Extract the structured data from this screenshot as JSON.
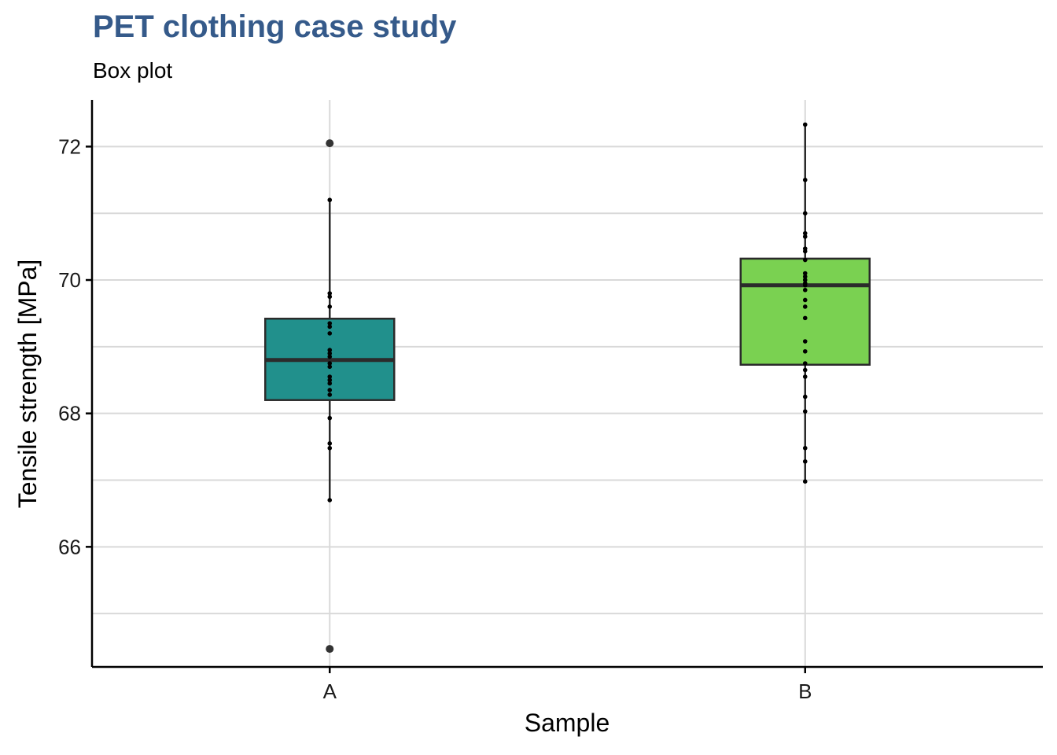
{
  "chart_data": {
    "type": "box",
    "title": "PET clothing case study",
    "subtitle": "Box plot",
    "xlabel": "Sample",
    "ylabel": "Tensile strength [MPa]",
    "categories": [
      "A",
      "B"
    ],
    "ylim": [
      64.2,
      72.7
    ],
    "yticks": [
      66,
      68,
      70,
      72
    ],
    "yminor": [
      65,
      67,
      69,
      71
    ],
    "grid": true,
    "colors": {
      "A": "#21908c",
      "B": "#7ad151",
      "title": "#355a8a",
      "grid": "#d9d9d9",
      "box_line": "#2b2b2b"
    },
    "boxes": [
      {
        "category": "A",
        "lower_whisker": 66.7,
        "q1": 68.2,
        "median": 68.8,
        "q3": 69.42,
        "upper_whisker": 71.2,
        "outliers": [
          72.05,
          64.47
        ]
      },
      {
        "category": "B",
        "lower_whisker": 66.98,
        "q1": 68.73,
        "median": 69.92,
        "q3": 70.32,
        "upper_whisker": 72.33,
        "outliers": []
      }
    ],
    "points": [
      {
        "category": "A",
        "values": [
          71.2,
          69.8,
          69.75,
          69.6,
          69.35,
          69.3,
          69.2,
          68.95,
          68.9,
          68.85,
          68.75,
          68.7,
          68.55,
          68.5,
          68.45,
          68.35,
          68.28,
          67.93,
          67.55,
          67.48,
          66.7
        ]
      },
      {
        "category": "B",
        "values": [
          72.33,
          71.5,
          71.0,
          70.7,
          70.65,
          70.47,
          70.43,
          70.3,
          70.1,
          70.05,
          70.0,
          69.95,
          69.92,
          69.85,
          69.7,
          69.6,
          69.43,
          69.08,
          68.93,
          68.75,
          68.65,
          68.55,
          68.25,
          68.03,
          67.48,
          67.28,
          66.98
        ]
      }
    ]
  }
}
